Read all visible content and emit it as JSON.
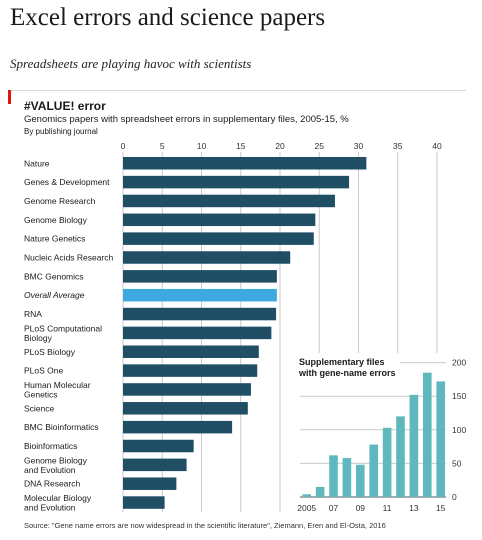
{
  "headline": "Excel errors and science papers",
  "standfirst": "Spreadsheets are playing havoc with scientists",
  "chart_data": [
    {
      "type": "bar",
      "orientation": "horizontal",
      "title": "#VALUE! error",
      "subtitle": "Genomics papers with spreadsheet errors in supplementary files, 2005-15, %",
      "note": "By publishing journal",
      "xlim": [
        0,
        40
      ],
      "xticks": [
        0,
        5,
        10,
        15,
        20,
        25,
        30,
        35,
        40
      ],
      "grid": true,
      "highlight_color": "#3ea9e0",
      "bar_color": "#1f4e65",
      "categories": [
        "Nature",
        "Genes & Development",
        "Genome Research",
        "Genome Biology",
        "Nature Genetics",
        "Nucleic Acids Research",
        "BMC Genomics",
        "Overall Average",
        "RNA",
        "PLoS Computational Biology",
        "PLoS Biology",
        "PLoS One",
        "Human Molecular Genetics",
        "Science",
        "BMC Bioinformatics",
        "Bioinformatics",
        "Genome Biology and Evolution",
        "DNA Research",
        "Molecular Biology and Evolution"
      ],
      "category_lines": [
        [
          "Nature"
        ],
        [
          "Genes & Development"
        ],
        [
          "Genome Research"
        ],
        [
          "Genome Biology"
        ],
        [
          "Nature Genetics"
        ],
        [
          "Nucleic Acids Research"
        ],
        [
          "BMC Genomics"
        ],
        [
          "Overall Average"
        ],
        [
          "RNA"
        ],
        [
          "PLoS Computational",
          "Biology"
        ],
        [
          "PLoS Biology"
        ],
        [
          "PLoS One"
        ],
        [
          "Human Molecular",
          "Genetics"
        ],
        [
          "Science"
        ],
        [
          "BMC Bioinformatics"
        ],
        [
          "Bioinformatics"
        ],
        [
          "Genome Biology",
          "and Evolution"
        ],
        [
          "DNA Research"
        ],
        [
          "Molecular Biology",
          "and Evolution"
        ]
      ],
      "highlighted": "Overall Average",
      "values": [
        31,
        28.8,
        27,
        24.5,
        24.3,
        21.3,
        19.6,
        19.6,
        19.5,
        18.9,
        17.3,
        17.1,
        16.3,
        15.9,
        13.9,
        9.0,
        8.1,
        6.8,
        5.3
      ]
    },
    {
      "type": "bar",
      "title": "Supplementary files with gene-name errors",
      "title_lines": [
        "Supplementary files",
        "with gene-name errors"
      ],
      "categories": [
        "2005",
        "06",
        "07",
        "08",
        "09",
        "10",
        "11",
        "12",
        "13",
        "14",
        "15"
      ],
      "x_tick_labels": [
        "2005",
        "07",
        "09",
        "11",
        "13",
        "15"
      ],
      "ylim": [
        0,
        200
      ],
      "yticks": [
        0,
        50,
        100,
        150,
        200
      ],
      "grid": true,
      "bar_color": "#5fb8bd",
      "values": [
        4,
        15,
        62,
        58,
        48,
        78,
        103,
        120,
        152,
        185,
        172
      ]
    }
  ],
  "source": "Source: \"Gene name errors are now widespread in the scientific literature\", Ziemann, Eren and El-Osta, 2016"
}
